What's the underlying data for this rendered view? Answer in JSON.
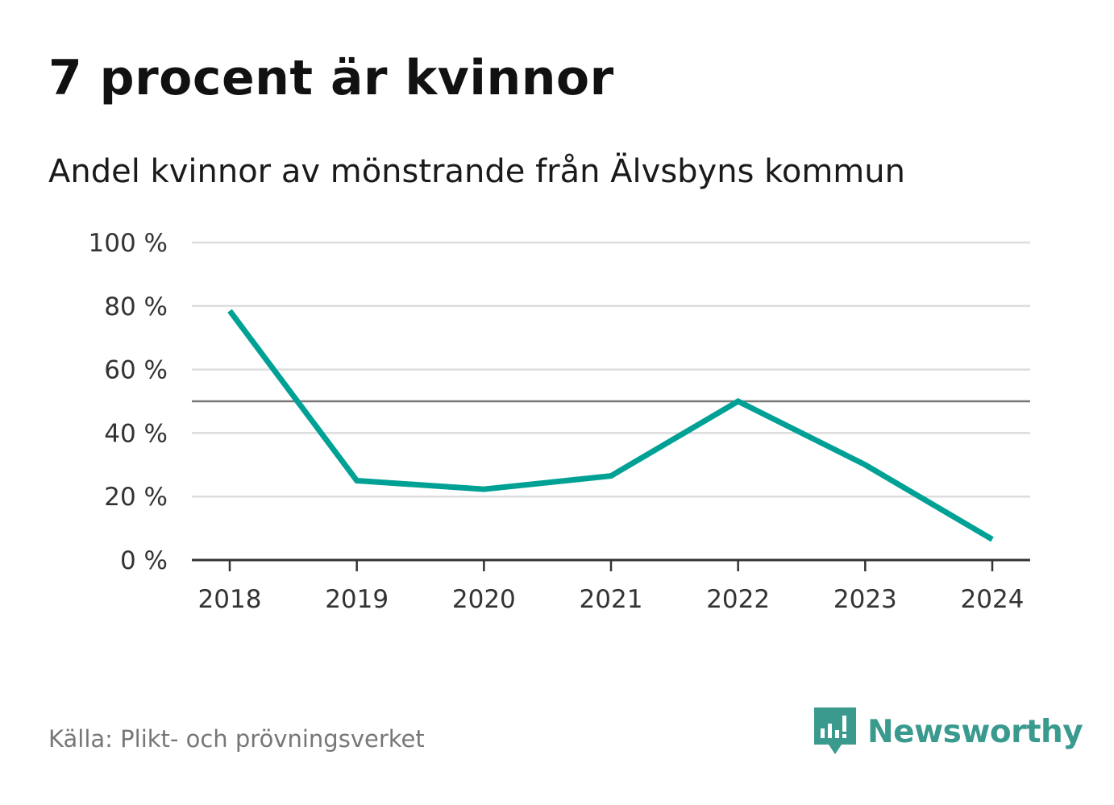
{
  "header": {
    "title": "7 procent är kvinnor",
    "subtitle": "Andel kvinnor av mönstrande från Älvsbyns kommun"
  },
  "footer": {
    "source": "Källa: Plikt- och prövningsverket",
    "brand": "Newsworthy"
  },
  "colors": {
    "line": "#00a195",
    "grid": "#dddddd",
    "reference": "#777777",
    "axis": "#333333",
    "brand": "#3a9a8e"
  },
  "chart_data": {
    "type": "line",
    "title": "7 procent är kvinnor",
    "subtitle": "Andel kvinnor av mönstrande från Älvsbyns kommun",
    "x": [
      "2018",
      "2019",
      "2020",
      "2021",
      "2022",
      "2023",
      "2024"
    ],
    "series": [
      {
        "values": [
          78.5,
          25,
          22.3,
          26.5,
          50,
          30,
          6.5
        ]
      }
    ],
    "y_ticks": [
      0,
      20,
      40,
      60,
      80,
      100
    ],
    "y_tick_labels": [
      "0 %",
      "20 %",
      "40 %",
      "60 %",
      "80 %",
      "100 %"
    ],
    "ylim": [
      0,
      100
    ],
    "reference_line": 50,
    "grid": true,
    "legend": "none",
    "xlabel": "",
    "ylabel": ""
  }
}
